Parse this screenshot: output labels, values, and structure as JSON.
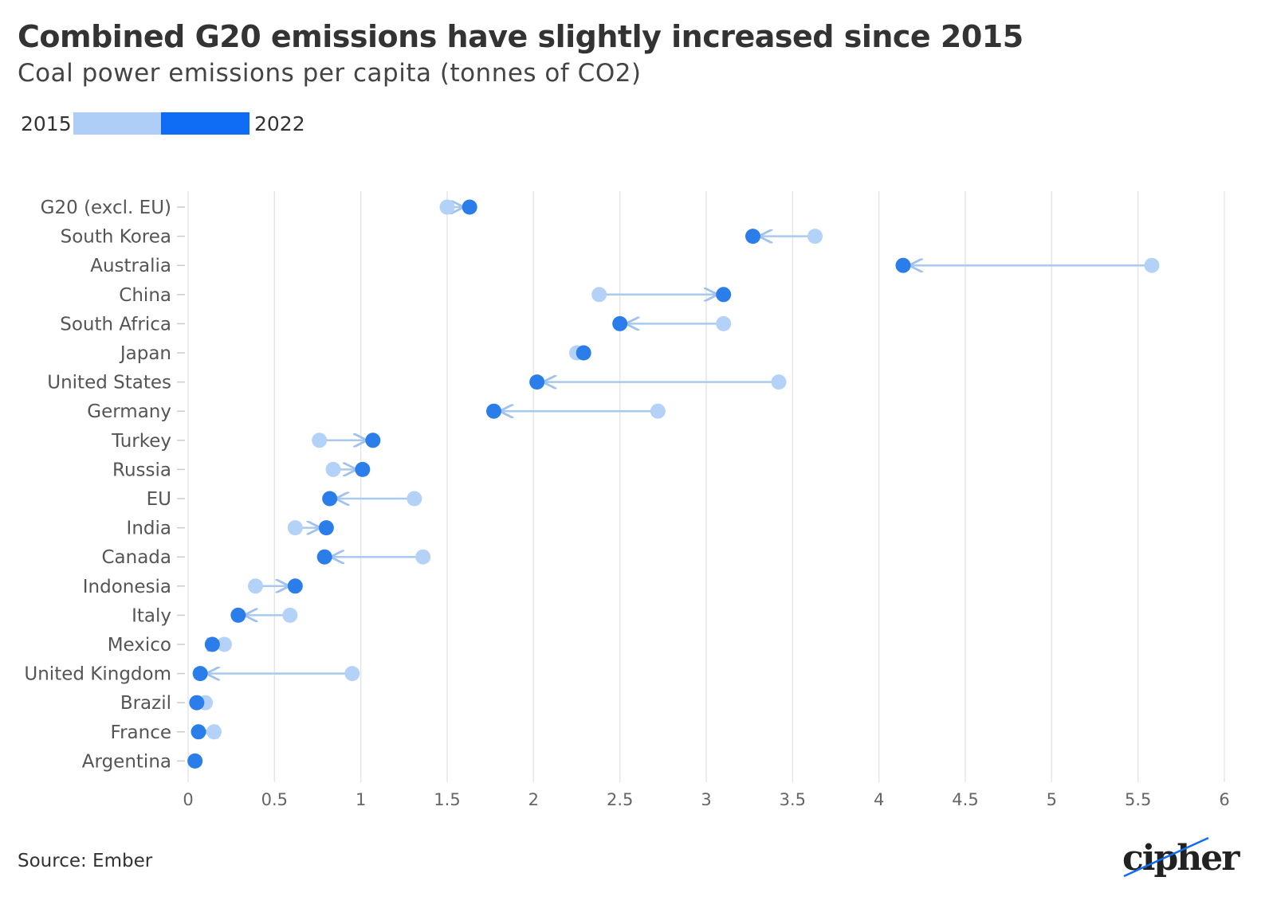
{
  "header": {
    "title": "Combined G20 emissions have slightly increased since 2015",
    "subtitle": "Coal power emissions per capita (tonnes of CO2)"
  },
  "legend": {
    "start_label": "2015",
    "end_label": "2022",
    "colors": {
      "2015": "#aecdf7",
      "2022": "#0f6cf5"
    }
  },
  "footer": {
    "source": "Source: Ember",
    "logo": "cipher"
  },
  "colors": {
    "start_dot": "#b4d2f8",
    "end_dot": "#2b7de9",
    "connector": "#a9c9f1",
    "grid": "#e6e6e6"
  },
  "chart_data": {
    "type": "dumbbell",
    "title": "Combined G20 emissions have slightly increased since 2015",
    "subtitle": "Coal power emissions per capita (tonnes of CO2)",
    "xlabel": "",
    "ylabel": "",
    "xlim": [
      0,
      6
    ],
    "x_ticks": [
      0,
      0.5,
      1,
      1.5,
      2,
      2.5,
      3,
      3.5,
      4,
      4.5,
      5,
      5.5,
      6
    ],
    "x_tick_labels": [
      "0",
      "0.5",
      "1",
      "1.5",
      "2",
      "2.5",
      "3",
      "3.5",
      "4",
      "4.5",
      "5",
      "5.5",
      "6"
    ],
    "grid": true,
    "legend_position": "top-left",
    "series": [
      {
        "name": "2015"
      },
      {
        "name": "2022"
      }
    ],
    "categories": [
      "G20 (excl. EU)",
      "South Korea",
      "Australia",
      "China",
      "South Africa",
      "Japan",
      "United States",
      "Germany",
      "Turkey",
      "Russia",
      "EU",
      "India",
      "Canada",
      "Indonesia",
      "Italy",
      "Mexico",
      "United Kingdom",
      "Brazil",
      "France",
      "Argentina"
    ],
    "values_2015": [
      1.5,
      3.63,
      5.58,
      2.38,
      3.1,
      2.25,
      3.42,
      2.72,
      0.76,
      0.84,
      1.31,
      0.62,
      1.36,
      0.39,
      0.59,
      0.21,
      0.95,
      0.1,
      0.15,
      0.04
    ],
    "values_2022": [
      1.63,
      3.27,
      4.14,
      3.1,
      2.5,
      2.29,
      2.02,
      1.77,
      1.07,
      1.01,
      0.82,
      0.8,
      0.79,
      0.62,
      0.29,
      0.14,
      0.07,
      0.05,
      0.06,
      0.04
    ]
  }
}
